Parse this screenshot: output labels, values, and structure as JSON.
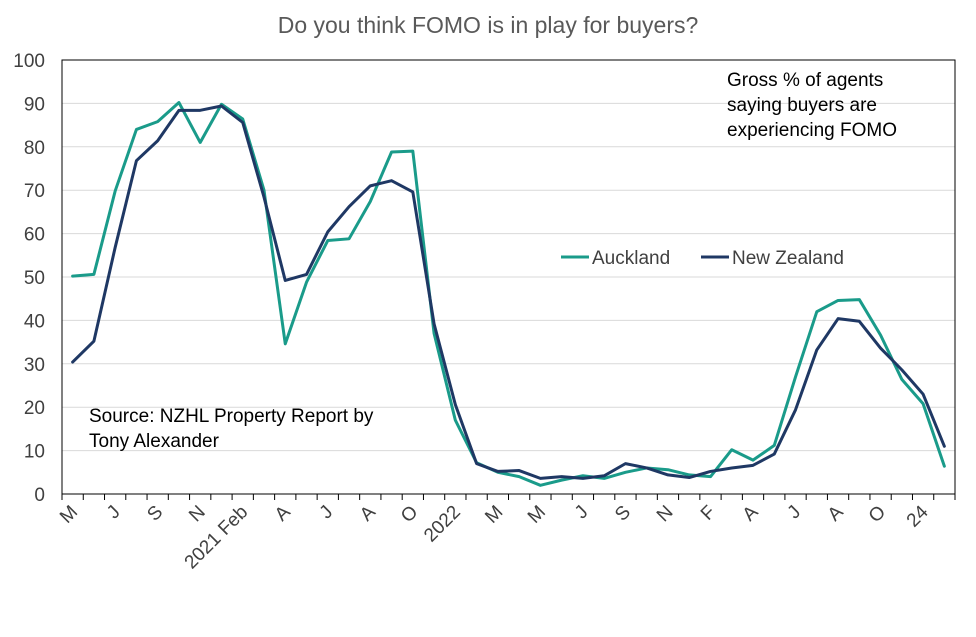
{
  "chart_data": {
    "type": "line",
    "title": "Do you think FOMO is in play for buyers?",
    "xlabel": "",
    "ylabel": "",
    "ylim": [
      0,
      100
    ],
    "yticks": [
      0,
      10,
      20,
      30,
      40,
      50,
      60,
      70,
      80,
      90,
      100
    ],
    "grid": true,
    "legend_position": "center-right",
    "tick_labels": [
      {
        "index": 0,
        "label": "M"
      },
      {
        "index": 2,
        "label": "J"
      },
      {
        "index": 4,
        "label": "S"
      },
      {
        "index": 6,
        "label": "N"
      },
      {
        "index": 8,
        "label": "2021 Feb"
      },
      {
        "index": 10,
        "label": "A"
      },
      {
        "index": 12,
        "label": "J"
      },
      {
        "index": 14,
        "label": "A"
      },
      {
        "index": 16,
        "label": "O"
      },
      {
        "index": 18,
        "label": "2022"
      },
      {
        "index": 20,
        "label": "M"
      },
      {
        "index": 22,
        "label": "M"
      },
      {
        "index": 24,
        "label": "J"
      },
      {
        "index": 26,
        "label": "S"
      },
      {
        "index": 28,
        "label": "N"
      },
      {
        "index": 30,
        "label": "F"
      },
      {
        "index": 32,
        "label": "A"
      },
      {
        "index": 34,
        "label": "J"
      },
      {
        "index": 36,
        "label": "A"
      },
      {
        "index": 38,
        "label": "O"
      },
      {
        "index": 40,
        "label": "24"
      }
    ],
    "num_categories": 42,
    "series": [
      {
        "name": "Auckland",
        "color": "#1a9b8a",
        "values": [
          50.2,
          50.6,
          69.8,
          84.0,
          85.8,
          90.2,
          81.0,
          89.8,
          86.4,
          70.0,
          34.6,
          48.8,
          58.4,
          58.8,
          67.4,
          78.8,
          79.0,
          37.0,
          17.0,
          7.2,
          5.0,
          4.0,
          2.0,
          3.2,
          4.2,
          3.6,
          5.0,
          6.0,
          5.6,
          4.4,
          4.0,
          10.2,
          7.8,
          11.2,
          27.0,
          42.0,
          44.6,
          44.8,
          36.6,
          26.4,
          20.8,
          6.4
        ]
      },
      {
        "name": "New Zealand",
        "color": "#1f3864",
        "values": [
          30.4,
          35.2,
          56.8,
          76.8,
          81.4,
          88.4,
          88.4,
          89.4,
          85.6,
          68.4,
          49.2,
          50.6,
          60.4,
          66.2,
          71.0,
          72.2,
          69.6,
          39.2,
          20.6,
          7.0,
          5.2,
          5.4,
          3.6,
          4.0,
          3.6,
          4.2,
          7.0,
          6.0,
          4.4,
          3.8,
          5.2,
          6.0,
          6.6,
          9.2,
          19.4,
          33.2,
          40.4,
          39.8,
          33.6,
          28.6,
          23.0,
          11.0
        ]
      }
    ],
    "annotations": [
      {
        "id": "gross",
        "lines": [
          "Gross % of agents",
          "saying buyers are",
          "experiencing FOMO"
        ]
      },
      {
        "id": "source",
        "lines": [
          "Source: NZHL Property Report by",
          "Tony Alexander"
        ]
      }
    ]
  }
}
